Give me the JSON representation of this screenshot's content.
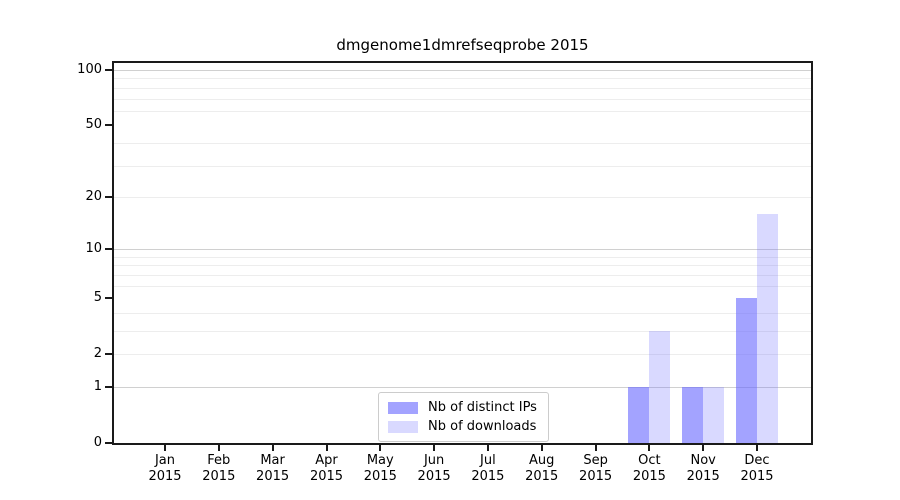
{
  "figure": {
    "title": "dmgenome1dmrefseqprobe 2015"
  },
  "chart_data": {
    "type": "bar",
    "title": "dmgenome1dmrefseqprobe 2015",
    "categories": [
      "Jan 2015",
      "Feb 2015",
      "Mar 2015",
      "Apr 2015",
      "May 2015",
      "Jun 2015",
      "Jul 2015",
      "Aug 2015",
      "Sep 2015",
      "Oct 2015",
      "Nov 2015",
      "Dec 2015"
    ],
    "x_tick_months": [
      "Jan",
      "Feb",
      "Mar",
      "Apr",
      "May",
      "Jun",
      "Jul",
      "Aug",
      "Sep",
      "Oct",
      "Nov",
      "Dec"
    ],
    "x_tick_year": "2015",
    "series": [
      {
        "name": "Nb of distinct IPs",
        "values": [
          0,
          0,
          0,
          0,
          0,
          0,
          0,
          0,
          0,
          1,
          1,
          5
        ],
        "color": "rgba(102,102,255,0.6)"
      },
      {
        "name": "Nb of downloads",
        "values": [
          0,
          0,
          0,
          0,
          0,
          0,
          0,
          0,
          0,
          3,
          1,
          16
        ],
        "color": "rgba(102,102,255,0.25)"
      }
    ],
    "y_ticks": [
      0,
      1,
      2,
      5,
      10,
      20,
      50,
      100
    ],
    "y_scale": "log10(1+x)",
    "ylim": [
      0,
      109
    ],
    "xlabel": "",
    "ylabel": "",
    "grid": {
      "major_lines": [
        1,
        10,
        100
      ],
      "minor_lines": [
        2,
        3,
        4,
        6,
        7,
        8,
        9,
        20,
        30,
        40,
        60,
        70,
        80,
        90
      ],
      "major_color": "#d0d0d0",
      "minor_color": "#ededed"
    },
    "legend": {
      "position": "bottom-center",
      "entries": [
        "Nb of distinct IPs",
        "Nb of downloads"
      ]
    },
    "colors": {
      "bar_base": "#6666ff",
      "spine": "#1a1a1a",
      "background": "#ffffff"
    }
  }
}
